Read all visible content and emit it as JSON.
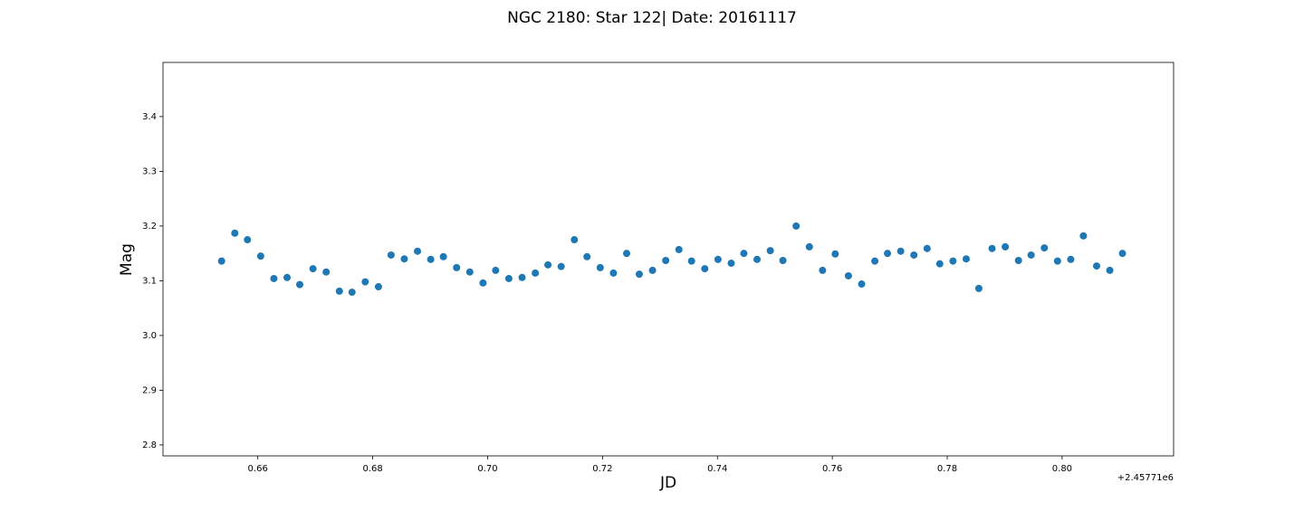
{
  "chart_data": {
    "type": "scatter",
    "title": "NGC 2180: Star 122| Date: 20161117",
    "x_label": "JD",
    "y_label": "Mag",
    "x_offset_label": "+2.45771e6",
    "color": "#1f77b4",
    "x": [
      0.6537,
      0.656,
      0.6582,
      0.6605,
      0.6628,
      0.6651,
      0.6673,
      0.6696,
      0.6719,
      0.6742,
      0.6764,
      0.6787,
      0.681,
      0.6832,
      0.6855,
      0.6878,
      0.6901,
      0.6923,
      0.6946,
      0.6969,
      0.6992,
      0.7014,
      0.7037,
      0.706,
      0.7083,
      0.7105,
      0.7128,
      0.7151,
      0.7173,
      0.7196,
      0.7219,
      0.7242,
      0.7264,
      0.7287,
      0.731,
      0.7333,
      0.7355,
      0.7378,
      0.7401,
      0.7424,
      0.7446,
      0.7469,
      0.7492,
      0.7514,
      0.7537,
      0.756,
      0.7583,
      0.7605,
      0.7628,
      0.7651,
      0.7674,
      0.7696,
      0.7719,
      0.7742,
      0.7765,
      0.7787,
      0.781,
      0.7833,
      0.7855,
      0.7878,
      0.7901,
      0.7924,
      0.7946,
      0.7969,
      0.7992,
      0.8015,
      0.8037,
      0.806,
      0.8083,
      0.8105
    ],
    "values": [
      3.136,
      3.187,
      3.175,
      3.145,
      3.104,
      3.106,
      3.093,
      3.122,
      3.116,
      3.081,
      3.079,
      3.098,
      3.089,
      3.147,
      3.14,
      3.154,
      3.139,
      3.144,
      3.124,
      3.116,
      3.096,
      3.119,
      3.104,
      3.106,
      3.114,
      3.129,
      3.126,
      3.175,
      3.144,
      3.124,
      3.114,
      3.15,
      3.112,
      3.119,
      3.137,
      3.157,
      3.136,
      3.122,
      3.139,
      3.132,
      3.15,
      3.139,
      3.155,
      3.137,
      3.2,
      3.162,
      3.119,
      3.149,
      3.109,
      3.094,
      3.136,
      3.15,
      3.154,
      3.147,
      3.159,
      3.131,
      3.136,
      3.14,
      3.086,
      3.159,
      3.162,
      3.137,
      3.147,
      3.16,
      3.136,
      3.139,
      3.182,
      3.127,
      3.119,
      3.15
    ],
    "xlim": [
      0.6435,
      0.8194
    ],
    "xticks": [
      {
        "value": 0.66,
        "label": "0.66"
      },
      {
        "value": 0.68,
        "label": "0.68"
      },
      {
        "value": 0.7,
        "label": "0.70"
      },
      {
        "value": 0.72,
        "label": "0.72"
      },
      {
        "value": 0.74,
        "label": "0.74"
      },
      {
        "value": 0.76,
        "label": "0.76"
      },
      {
        "value": 0.78,
        "label": "0.78"
      },
      {
        "value": 0.8,
        "label": "0.80"
      }
    ],
    "ylim": [
      2.78,
      3.499
    ],
    "yticks": [
      2.8,
      2.9,
      {
        "value": 3,
        "label": "3.0"
      },
      3.1,
      3.2,
      3.3,
      3.4
    ],
    "grid": false
  }
}
